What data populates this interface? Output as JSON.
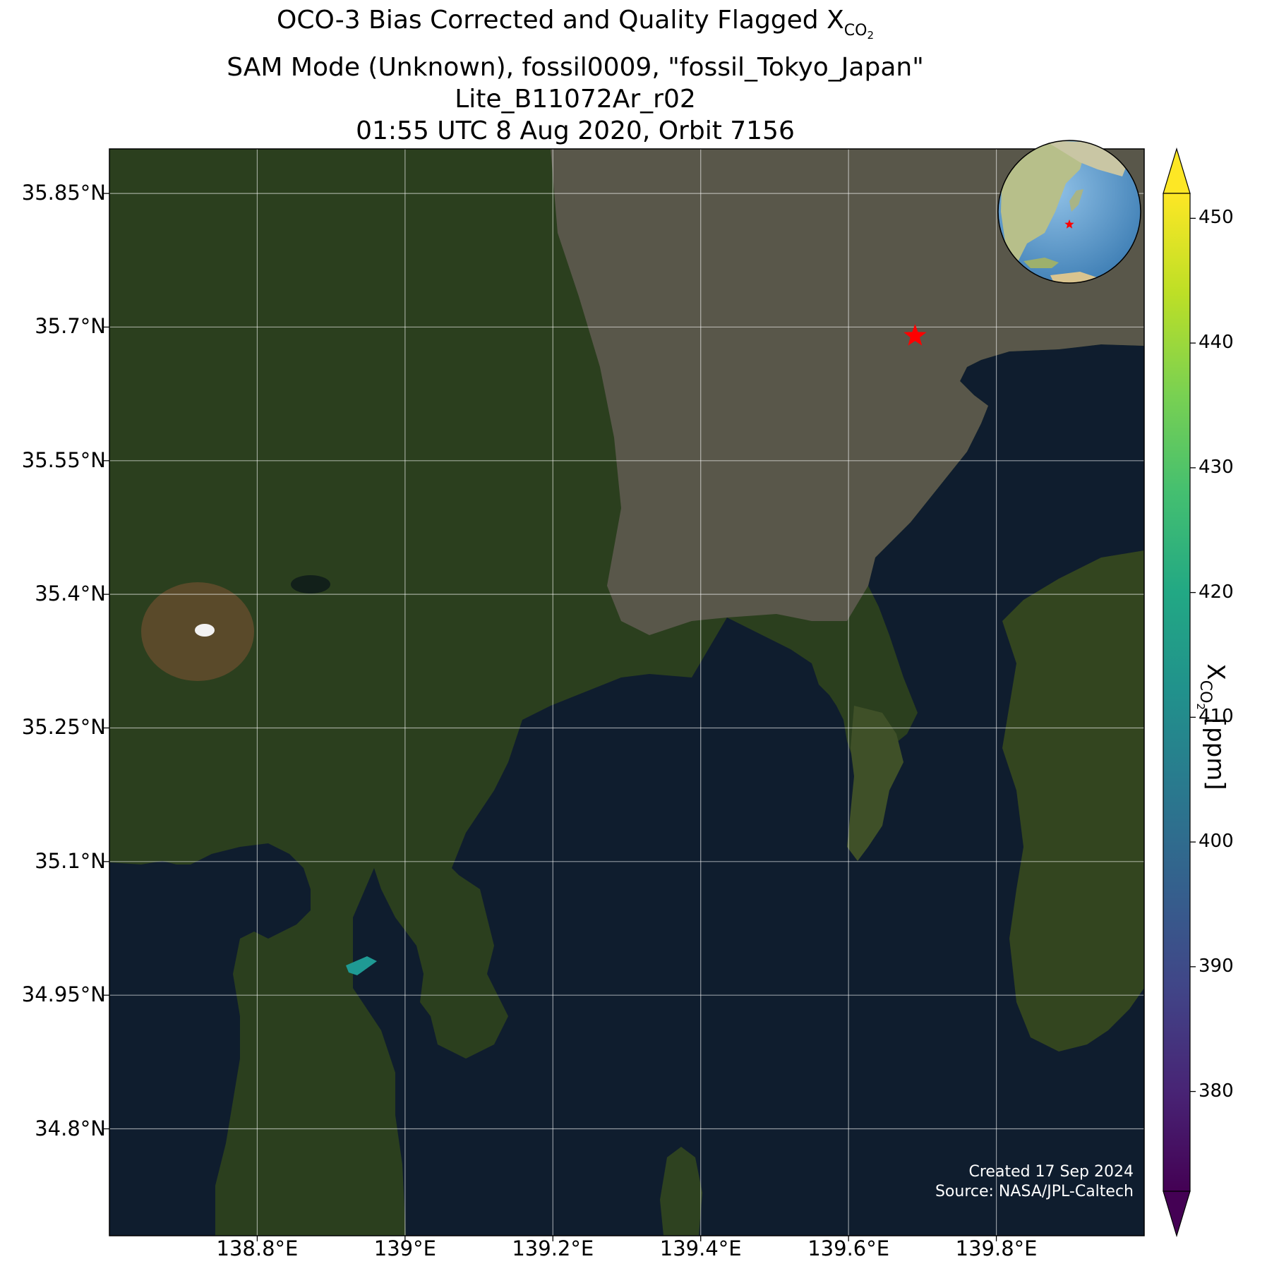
{
  "title": {
    "line1_prefix": "OCO-3 Bias Corrected and Quality Flagged X",
    "line1_sub": "CO",
    "line1_subsub": "2",
    "line2": "SAM Mode (Unknown), fossil0009, \"fossil_Tokyo_Japan\"",
    "line3": "Lite_B11072Ar_r02",
    "line4": "01:55 UTC 8 Aug 2020, Orbit 7156"
  },
  "map": {
    "lat_ticks": [
      "35.85°N",
      "35.7°N",
      "35.55°N",
      "35.4°N",
      "35.25°N",
      "35.1°N",
      "34.95°N",
      "34.8°N"
    ],
    "lat_values": [
      35.85,
      35.7,
      35.55,
      35.4,
      35.25,
      35.1,
      34.95,
      34.8
    ],
    "lon_ticks": [
      "138.8°E",
      "139°E",
      "139.2°E",
      "139.4°E",
      "139.6°E",
      "139.8°E"
    ],
    "lon_values": [
      138.8,
      139.0,
      139.2,
      139.4,
      139.6,
      139.8
    ],
    "extent": {
      "lon_min": 138.6,
      "lon_max": 140.0,
      "lat_min": 34.68,
      "lat_max": 35.9
    },
    "target": {
      "name": "fossil_Tokyo_Japan",
      "lon": 139.69,
      "lat": 35.69,
      "marker": "red-star",
      "color": "#ff0000"
    },
    "sounding": {
      "lon": 138.93,
      "lat": 34.99,
      "xco2_ppm": 412,
      "color": "#1f9a94"
    },
    "basemap_colors": {
      "sea": "#0f1d2e",
      "land_forest": "#2b3f1e",
      "land_urban": "#59574a"
    }
  },
  "colorbar": {
    "label_prefix": "X",
    "label_sub": "CO",
    "label_subsub": "2",
    "label_suffix": " [ppm]",
    "ticks": [
      "450",
      "440",
      "430",
      "420",
      "410",
      "400",
      "390",
      "380"
    ],
    "tick_values": [
      450,
      440,
      430,
      420,
      410,
      400,
      390,
      380
    ],
    "min": 372,
    "max": 452,
    "colormap": "viridis",
    "extend": "both",
    "extend_min_color": "#440154",
    "extend_max_color": "#fde725"
  },
  "inset_globe": {
    "ocean_color": "#5b98c9",
    "marker": "red-star"
  },
  "credits": {
    "created": "Created 17 Sep 2024",
    "source": "Source: NASA/JPL-Caltech"
  }
}
